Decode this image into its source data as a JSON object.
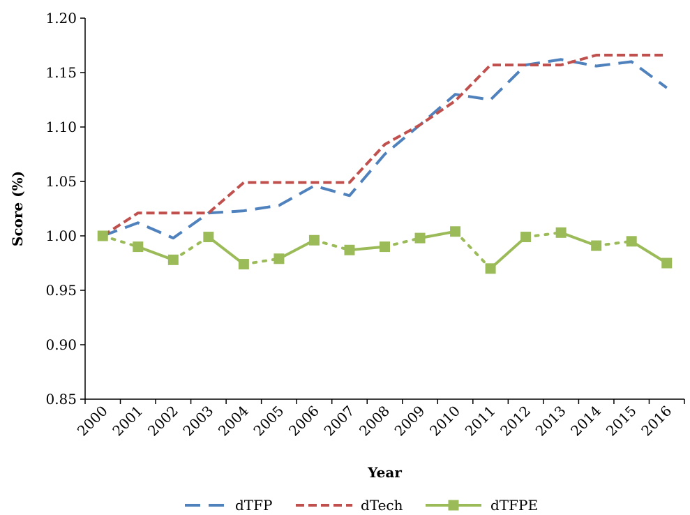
{
  "chart_data": {
    "type": "line",
    "title": "",
    "xlabel": "Year",
    "ylabel": "Score (%)",
    "ylim": [
      0.85,
      1.2
    ],
    "yticks": [
      "0.85",
      "0.90",
      "0.95",
      "1.00",
      "1.05",
      "1.10",
      "1.15",
      "1.20"
    ],
    "categories": [
      "2000",
      "2001",
      "2002",
      "2003",
      "2004",
      "2005",
      "2006",
      "2007",
      "2008",
      "2009",
      "2010",
      "2011",
      "2012",
      "2013",
      "2014",
      "2015",
      "2016"
    ],
    "grid": false,
    "legend_position": "bottom",
    "series": [
      {
        "name": "dTFP",
        "color": "#4f81bd",
        "style": "long-dash",
        "values": [
          1.0,
          1.012,
          0.998,
          1.021,
          1.023,
          1.028,
          1.046,
          1.037,
          1.075,
          1.102,
          1.13,
          1.125,
          1.157,
          1.162,
          1.156,
          1.16,
          1.136
        ]
      },
      {
        "name": "dTech",
        "color": "#c0504d",
        "style": "short-dash",
        "values": [
          1.0,
          1.021,
          1.021,
          1.021,
          1.049,
          1.049,
          1.049,
          1.049,
          1.084,
          1.102,
          1.124,
          1.157,
          1.157,
          1.157,
          1.166,
          1.166,
          1.166
        ]
      },
      {
        "name": "dTFPE",
        "color": "#9bbb59",
        "style": "dash-dot-square",
        "values": [
          1.0,
          0.99,
          0.978,
          0.999,
          0.974,
          0.979,
          0.996,
          0.987,
          0.99,
          0.998,
          1.004,
          0.97,
          0.999,
          1.003,
          0.991,
          0.995,
          0.975
        ]
      }
    ]
  }
}
